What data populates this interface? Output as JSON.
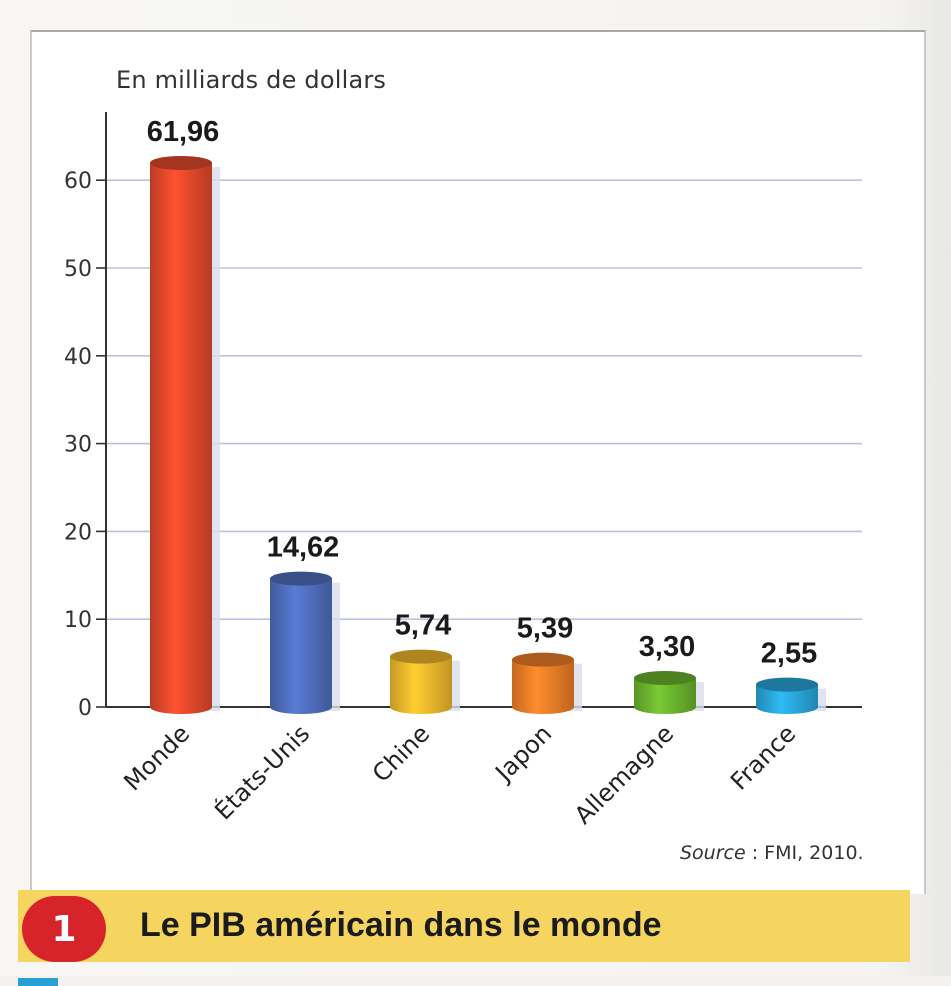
{
  "chart_data": {
    "type": "bar",
    "unit_label": "En milliards de dollars",
    "categories": [
      "Monde",
      "États-Unis",
      "Chine",
      "Japon",
      "Allemagne",
      "France"
    ],
    "values": [
      61.96,
      14.62,
      5.74,
      5.39,
      3.3,
      2.55
    ],
    "value_labels": [
      "61,96",
      "14,62",
      "5,74",
      "5,39",
      "3,30",
      "2,55"
    ],
    "yticks": [
      "0",
      "10",
      "20",
      "30",
      "40",
      "50",
      "60"
    ],
    "ylim": [
      0,
      67
    ],
    "grid": true,
    "colors": [
      "#e4492c",
      "#4f6fbd",
      "#f1b92b",
      "#ef7e27",
      "#6cb42e",
      "#2aa7dc"
    ]
  },
  "source": {
    "label": "Source",
    "text": " : FMI, 2010."
  },
  "caption": {
    "number": "1",
    "title": "Le PIB américain dans le monde"
  }
}
